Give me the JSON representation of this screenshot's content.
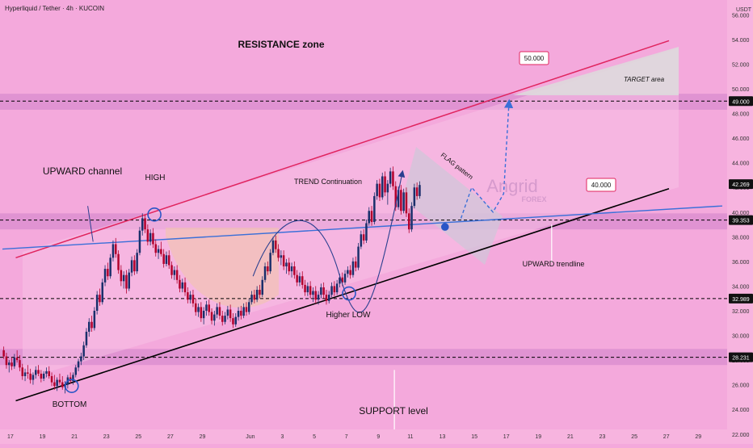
{
  "header": {
    "symbol": "Hyperliquid / Tether · 4h · KUCOIN",
    "currency": "USDT"
  },
  "watermark": {
    "line1": "Angrid",
    "line2": "FOREX"
  },
  "annotations": {
    "resistance_zone": "RESISTANCE zone",
    "upward_channel": "UPWARD channel",
    "high": "HIGH",
    "trend_continuation": "TREND Continuation",
    "flag_pattern": "FLAG pattern",
    "target_area": "TARGET area",
    "upward_trendline": "UPWARD trendline",
    "higher_low": "Higher LOW",
    "bottom": "BOTTOM",
    "support_level": "SUPPORT level",
    "label_50": "50.000",
    "label_40": "40.000"
  },
  "colors": {
    "background": "#f4a9dc",
    "zone_band": "#dc8fd0",
    "dash_line": "#000000",
    "bull": "#1a2f6b",
    "bear": "#b3002c",
    "resistance_line": "#e0245e",
    "trendline": "#3a6fd8",
    "support_line": "#000000",
    "circle": "#2a56c6"
  },
  "chart_data": {
    "type": "candlestick",
    "title": "Hyperliquid / Tether · 4h · KUCOIN",
    "currency": "USDT",
    "yrange": [
      21.2,
      57.2
    ],
    "y_ticks": [
      22,
      24,
      26,
      28,
      30,
      32,
      34,
      36,
      38,
      40,
      42,
      44,
      46,
      48,
      50,
      52,
      54,
      56
    ],
    "y_tick_labels": [
      "22.000",
      "24.000",
      "26.000",
      "28.000",
      "30.000",
      "32.000",
      "34.000",
      "36.000",
      "38.000",
      "40.000",
      "42.000",
      "44.000",
      "46.000",
      "48.000",
      "50.000",
      "52.000",
      "54.000",
      "56.000"
    ],
    "x_ticks": [
      {
        "bar": 3,
        "label": "17"
      },
      {
        "bar": 15,
        "label": "19"
      },
      {
        "bar": 27,
        "label": "21"
      },
      {
        "bar": 39,
        "label": "23"
      },
      {
        "bar": 51,
        "label": "25"
      },
      {
        "bar": 63,
        "label": "27"
      },
      {
        "bar": 75,
        "label": "29"
      },
      {
        "bar": 93,
        "label": "Jun"
      },
      {
        "bar": 105,
        "label": "3"
      },
      {
        "bar": 117,
        "label": "5"
      },
      {
        "bar": 129,
        "label": "7"
      },
      {
        "bar": 141,
        "label": "9"
      },
      {
        "bar": 153,
        "label": "11"
      },
      {
        "bar": 165,
        "label": "13"
      },
      {
        "bar": 177,
        "label": "15"
      },
      {
        "bar": 189,
        "label": "17"
      },
      {
        "bar": 201,
        "label": "19"
      },
      {
        "bar": 213,
        "label": "21"
      },
      {
        "bar": 225,
        "label": "23"
      },
      {
        "bar": 237,
        "label": "25"
      },
      {
        "bar": 249,
        "label": "27"
      },
      {
        "bar": 261,
        "label": "29"
      }
    ],
    "price_labels": [
      {
        "value": 49.0,
        "label": "49.000"
      },
      {
        "value": 42.269,
        "label": "42.269"
      },
      {
        "value": 39.353,
        "label": "39.353"
      },
      {
        "value": 32.989,
        "label": "32.989"
      },
      {
        "value": 28.231,
        "label": "28.231"
      }
    ],
    "zones": [
      {
        "from": 48.3,
        "to": 49.6
      },
      {
        "from": 38.6,
        "to": 39.9
      },
      {
        "from": 27.6,
        "to": 28.9
      }
    ],
    "dashed_levels": [
      49.0,
      39.353,
      32.989,
      28.231
    ],
    "lines": {
      "resistance": [
        {
          "bar": 5,
          "price": 36.3
        },
        {
          "bar": 250,
          "price": 53.9
        }
      ],
      "support": [
        {
          "bar": 5,
          "price": 24.7
        },
        {
          "bar": 250,
          "price": 41.9
        }
      ],
      "trendline": [
        {
          "bar": 0,
          "price": 37.0
        },
        {
          "bar": 270,
          "price": 40.5
        }
      ]
    },
    "projection": [
      {
        "bar": 172,
        "price": 39.5
      },
      {
        "bar": 176,
        "price": 42.0
      },
      {
        "bar": 180,
        "price": 41.0
      },
      {
        "bar": 184,
        "price": 40.0
      },
      {
        "bar": 188,
        "price": 41.5
      },
      {
        "bar": 190,
        "price": 48.9
      }
    ],
    "candles": [
      {
        "o": 28.8,
        "h": 29.1,
        "l": 28.1,
        "c": 28.3
      },
      {
        "o": 28.3,
        "h": 28.6,
        "l": 27.3,
        "c": 27.6
      },
      {
        "o": 27.6,
        "h": 28.0,
        "l": 27.0,
        "c": 27.8
      },
      {
        "o": 27.8,
        "h": 28.2,
        "l": 27.2,
        "c": 27.5
      },
      {
        "o": 27.5,
        "h": 28.5,
        "l": 27.3,
        "c": 28.2
      },
      {
        "o": 28.2,
        "h": 28.8,
        "l": 27.8,
        "c": 28.0
      },
      {
        "o": 28.0,
        "h": 28.4,
        "l": 27.1,
        "c": 27.4
      },
      {
        "o": 27.4,
        "h": 27.7,
        "l": 26.4,
        "c": 26.7
      },
      {
        "o": 26.7,
        "h": 27.3,
        "l": 26.3,
        "c": 27.0
      },
      {
        "o": 27.0,
        "h": 27.6,
        "l": 26.5,
        "c": 26.9
      },
      {
        "o": 26.9,
        "h": 27.3,
        "l": 26.1,
        "c": 26.4
      },
      {
        "o": 26.4,
        "h": 27.0,
        "l": 26.0,
        "c": 26.8
      },
      {
        "o": 26.8,
        "h": 27.5,
        "l": 26.5,
        "c": 27.2
      },
      {
        "o": 27.2,
        "h": 27.6,
        "l": 26.7,
        "c": 26.9
      },
      {
        "o": 26.9,
        "h": 27.2,
        "l": 26.2,
        "c": 26.5
      },
      {
        "o": 26.5,
        "h": 27.1,
        "l": 26.3,
        "c": 26.9
      },
      {
        "o": 26.9,
        "h": 27.4,
        "l": 26.6,
        "c": 27.1
      },
      {
        "o": 27.1,
        "h": 27.5,
        "l": 26.5,
        "c": 26.7
      },
      {
        "o": 26.7,
        "h": 27.0,
        "l": 25.9,
        "c": 26.2
      },
      {
        "o": 26.2,
        "h": 26.8,
        "l": 25.6,
        "c": 25.9
      },
      {
        "o": 25.9,
        "h": 26.6,
        "l": 25.5,
        "c": 26.4
      },
      {
        "o": 26.4,
        "h": 26.9,
        "l": 26.0,
        "c": 26.2
      },
      {
        "o": 26.2,
        "h": 26.7,
        "l": 25.6,
        "c": 25.8
      },
      {
        "o": 25.8,
        "h": 26.3,
        "l": 25.3,
        "c": 26.0
      },
      {
        "o": 26.0,
        "h": 26.8,
        "l": 25.7,
        "c": 26.6
      },
      {
        "o": 26.6,
        "h": 27.0,
        "l": 26.1,
        "c": 26.3
      },
      {
        "o": 26.3,
        "h": 27.0,
        "l": 26.0,
        "c": 26.8
      },
      {
        "o": 26.8,
        "h": 27.6,
        "l": 26.6,
        "c": 27.4
      },
      {
        "o": 27.4,
        "h": 28.1,
        "l": 27.1,
        "c": 27.9
      },
      {
        "o": 27.9,
        "h": 28.6,
        "l": 27.6,
        "c": 28.3
      },
      {
        "o": 28.3,
        "h": 29.5,
        "l": 28.0,
        "c": 29.2
      },
      {
        "o": 29.2,
        "h": 30.6,
        "l": 29.0,
        "c": 30.3
      },
      {
        "o": 30.3,
        "h": 31.4,
        "l": 29.9,
        "c": 31.1
      },
      {
        "o": 31.1,
        "h": 31.6,
        "l": 30.3,
        "c": 30.6
      },
      {
        "o": 30.6,
        "h": 32.3,
        "l": 30.4,
        "c": 32.0
      },
      {
        "o": 32.0,
        "h": 33.6,
        "l": 31.7,
        "c": 33.3
      },
      {
        "o": 33.3,
        "h": 33.8,
        "l": 32.4,
        "c": 32.7
      },
      {
        "o": 32.7,
        "h": 34.6,
        "l": 32.5,
        "c": 34.3
      },
      {
        "o": 34.3,
        "h": 35.7,
        "l": 34.0,
        "c": 35.4
      },
      {
        "o": 35.4,
        "h": 35.9,
        "l": 34.5,
        "c": 34.8
      },
      {
        "o": 34.8,
        "h": 36.6,
        "l": 34.6,
        "c": 36.3
      },
      {
        "o": 36.3,
        "h": 37.7,
        "l": 36.0,
        "c": 37.4
      },
      {
        "o": 37.4,
        "h": 37.9,
        "l": 36.3,
        "c": 36.6
      },
      {
        "o": 36.6,
        "h": 36.9,
        "l": 35.0,
        "c": 35.3
      },
      {
        "o": 35.3,
        "h": 35.7,
        "l": 34.0,
        "c": 34.4
      },
      {
        "o": 34.4,
        "h": 35.2,
        "l": 33.8,
        "c": 34.9
      },
      {
        "o": 34.9,
        "h": 35.3,
        "l": 33.4,
        "c": 33.8
      },
      {
        "o": 33.8,
        "h": 35.4,
        "l": 33.6,
        "c": 35.1
      },
      {
        "o": 35.1,
        "h": 36.4,
        "l": 34.8,
        "c": 36.1
      },
      {
        "o": 36.1,
        "h": 36.5,
        "l": 34.9,
        "c": 35.2
      },
      {
        "o": 35.2,
        "h": 37.0,
        "l": 35.0,
        "c": 36.7
      },
      {
        "o": 36.7,
        "h": 38.8,
        "l": 36.5,
        "c": 38.5
      },
      {
        "o": 38.5,
        "h": 39.9,
        "l": 38.1,
        "c": 39.5
      },
      {
        "o": 39.5,
        "h": 39.8,
        "l": 38.3,
        "c": 38.6
      },
      {
        "o": 38.6,
        "h": 39.0,
        "l": 37.3,
        "c": 37.6
      },
      {
        "o": 37.6,
        "h": 38.6,
        "l": 37.3,
        "c": 38.3
      },
      {
        "o": 38.3,
        "h": 38.7,
        "l": 37.1,
        "c": 37.4
      },
      {
        "o": 37.4,
        "h": 37.8,
        "l": 36.4,
        "c": 36.7
      },
      {
        "o": 36.7,
        "h": 37.3,
        "l": 36.2,
        "c": 37.0
      },
      {
        "o": 37.0,
        "h": 37.6,
        "l": 36.4,
        "c": 36.6
      },
      {
        "o": 36.6,
        "h": 37.0,
        "l": 35.5,
        "c": 35.8
      },
      {
        "o": 35.8,
        "h": 36.8,
        "l": 35.6,
        "c": 36.5
      },
      {
        "o": 36.5,
        "h": 36.9,
        "l": 35.4,
        "c": 35.7
      },
      {
        "o": 35.7,
        "h": 36.0,
        "l": 34.6,
        "c": 34.9
      },
      {
        "o": 34.9,
        "h": 35.6,
        "l": 34.5,
        "c": 35.3
      },
      {
        "o": 35.3,
        "h": 35.7,
        "l": 34.2,
        "c": 34.5
      },
      {
        "o": 34.5,
        "h": 34.9,
        "l": 33.5,
        "c": 33.8
      },
      {
        "o": 33.8,
        "h": 34.6,
        "l": 33.5,
        "c": 34.3
      },
      {
        "o": 34.3,
        "h": 34.7,
        "l": 33.2,
        "c": 33.5
      },
      {
        "o": 33.5,
        "h": 33.9,
        "l": 32.6,
        "c": 32.9
      },
      {
        "o": 32.9,
        "h": 33.6,
        "l": 32.6,
        "c": 33.3
      },
      {
        "o": 33.3,
        "h": 33.7,
        "l": 32.3,
        "c": 32.6
      },
      {
        "o": 32.6,
        "h": 33.0,
        "l": 31.6,
        "c": 31.9
      },
      {
        "o": 31.9,
        "h": 32.6,
        "l": 31.5,
        "c": 32.3
      },
      {
        "o": 32.3,
        "h": 32.7,
        "l": 31.1,
        "c": 31.4
      },
      {
        "o": 31.4,
        "h": 32.3,
        "l": 30.9,
        "c": 32.0
      },
      {
        "o": 32.0,
        "h": 32.8,
        "l": 31.6,
        "c": 32.5
      },
      {
        "o": 32.5,
        "h": 32.9,
        "l": 31.6,
        "c": 31.9
      },
      {
        "o": 31.9,
        "h": 32.2,
        "l": 30.9,
        "c": 31.2
      },
      {
        "o": 31.2,
        "h": 32.0,
        "l": 30.8,
        "c": 31.7
      },
      {
        "o": 31.7,
        "h": 32.6,
        "l": 31.4,
        "c": 32.3
      },
      {
        "o": 32.3,
        "h": 32.7,
        "l": 31.3,
        "c": 31.6
      },
      {
        "o": 31.6,
        "h": 32.0,
        "l": 30.8,
        "c": 31.1
      },
      {
        "o": 31.1,
        "h": 31.9,
        "l": 30.9,
        "c": 31.6
      },
      {
        "o": 31.6,
        "h": 32.4,
        "l": 31.3,
        "c": 32.1
      },
      {
        "o": 32.1,
        "h": 32.5,
        "l": 31.1,
        "c": 31.4
      },
      {
        "o": 31.4,
        "h": 31.8,
        "l": 30.6,
        "c": 30.9
      },
      {
        "o": 30.9,
        "h": 31.8,
        "l": 30.7,
        "c": 31.5
      },
      {
        "o": 31.5,
        "h": 32.3,
        "l": 31.2,
        "c": 32.0
      },
      {
        "o": 32.0,
        "h": 32.4,
        "l": 31.3,
        "c": 31.6
      },
      {
        "o": 31.6,
        "h": 32.6,
        "l": 31.4,
        "c": 32.3
      },
      {
        "o": 32.3,
        "h": 32.7,
        "l": 31.6,
        "c": 31.9
      },
      {
        "o": 31.9,
        "h": 33.0,
        "l": 31.7,
        "c": 32.7
      },
      {
        "o": 32.7,
        "h": 33.6,
        "l": 32.5,
        "c": 33.3
      },
      {
        "o": 33.3,
        "h": 33.7,
        "l": 32.6,
        "c": 32.9
      },
      {
        "o": 32.9,
        "h": 34.0,
        "l": 32.7,
        "c": 33.7
      },
      {
        "o": 33.7,
        "h": 34.1,
        "l": 33.0,
        "c": 33.3
      },
      {
        "o": 33.3,
        "h": 34.8,
        "l": 33.1,
        "c": 34.5
      },
      {
        "o": 34.5,
        "h": 35.9,
        "l": 34.3,
        "c": 35.6
      },
      {
        "o": 35.6,
        "h": 36.0,
        "l": 34.9,
        "c": 35.2
      },
      {
        "o": 35.2,
        "h": 37.0,
        "l": 35.0,
        "c": 36.7
      },
      {
        "o": 36.7,
        "h": 38.0,
        "l": 36.5,
        "c": 37.7
      },
      {
        "o": 37.7,
        "h": 38.1,
        "l": 36.7,
        "c": 37.0
      },
      {
        "o": 37.0,
        "h": 37.4,
        "l": 36.0,
        "c": 36.3
      },
      {
        "o": 36.3,
        "h": 36.9,
        "l": 35.7,
        "c": 36.5
      },
      {
        "o": 36.5,
        "h": 36.9,
        "l": 35.3,
        "c": 35.6
      },
      {
        "o": 35.6,
        "h": 36.2,
        "l": 35.0,
        "c": 35.9
      },
      {
        "o": 35.9,
        "h": 36.3,
        "l": 34.9,
        "c": 35.2
      },
      {
        "o": 35.2,
        "h": 35.9,
        "l": 34.7,
        "c": 35.6
      },
      {
        "o": 35.6,
        "h": 36.0,
        "l": 34.6,
        "c": 34.9
      },
      {
        "o": 34.9,
        "h": 35.3,
        "l": 34.0,
        "c": 34.3
      },
      {
        "o": 34.3,
        "h": 35.1,
        "l": 34.0,
        "c": 34.8
      },
      {
        "o": 34.8,
        "h": 35.2,
        "l": 33.8,
        "c": 34.1
      },
      {
        "o": 34.1,
        "h": 34.5,
        "l": 33.2,
        "c": 33.5
      },
      {
        "o": 33.5,
        "h": 34.3,
        "l": 33.2,
        "c": 34.0
      },
      {
        "o": 34.0,
        "h": 34.4,
        "l": 33.0,
        "c": 33.3
      },
      {
        "o": 33.3,
        "h": 33.9,
        "l": 32.7,
        "c": 33.6
      },
      {
        "o": 33.6,
        "h": 34.0,
        "l": 32.6,
        "c": 32.9
      },
      {
        "o": 32.9,
        "h": 33.6,
        "l": 32.5,
        "c": 33.3
      },
      {
        "o": 33.3,
        "h": 34.2,
        "l": 33.0,
        "c": 33.9
      },
      {
        "o": 33.9,
        "h": 34.3,
        "l": 33.0,
        "c": 33.3
      },
      {
        "o": 33.3,
        "h": 33.7,
        "l": 32.5,
        "c": 32.8
      },
      {
        "o": 32.8,
        "h": 33.6,
        "l": 32.6,
        "c": 33.3
      },
      {
        "o": 33.3,
        "h": 34.3,
        "l": 33.1,
        "c": 34.0
      },
      {
        "o": 34.0,
        "h": 34.4,
        "l": 33.2,
        "c": 33.5
      },
      {
        "o": 33.5,
        "h": 34.5,
        "l": 33.3,
        "c": 34.2
      },
      {
        "o": 34.2,
        "h": 35.0,
        "l": 33.9,
        "c": 34.7
      },
      {
        "o": 34.7,
        "h": 35.1,
        "l": 34.0,
        "c": 34.3
      },
      {
        "o": 34.3,
        "h": 35.3,
        "l": 34.1,
        "c": 35.0
      },
      {
        "o": 35.0,
        "h": 35.6,
        "l": 34.7,
        "c": 35.3
      },
      {
        "o": 35.3,
        "h": 35.7,
        "l": 34.6,
        "c": 34.9
      },
      {
        "o": 34.9,
        "h": 36.3,
        "l": 34.7,
        "c": 36.0
      },
      {
        "o": 36.0,
        "h": 36.4,
        "l": 35.2,
        "c": 35.5
      },
      {
        "o": 35.5,
        "h": 37.5,
        "l": 35.3,
        "c": 37.2
      },
      {
        "o": 37.2,
        "h": 38.5,
        "l": 37.0,
        "c": 38.2
      },
      {
        "o": 38.2,
        "h": 38.6,
        "l": 37.4,
        "c": 37.7
      },
      {
        "o": 37.7,
        "h": 39.4,
        "l": 37.5,
        "c": 39.1
      },
      {
        "o": 39.1,
        "h": 40.4,
        "l": 38.9,
        "c": 40.1
      },
      {
        "o": 40.1,
        "h": 40.5,
        "l": 38.9,
        "c": 39.2
      },
      {
        "o": 39.2,
        "h": 41.6,
        "l": 39.0,
        "c": 41.3
      },
      {
        "o": 41.3,
        "h": 42.6,
        "l": 41.0,
        "c": 42.3
      },
      {
        "o": 42.3,
        "h": 42.7,
        "l": 40.9,
        "c": 41.2
      },
      {
        "o": 41.2,
        "h": 43.2,
        "l": 41.0,
        "c": 42.9
      },
      {
        "o": 42.9,
        "h": 43.3,
        "l": 41.3,
        "c": 41.6
      },
      {
        "o": 41.6,
        "h": 42.6,
        "l": 40.6,
        "c": 42.3
      },
      {
        "o": 42.3,
        "h": 43.6,
        "l": 42.0,
        "c": 43.3
      },
      {
        "o": 43.3,
        "h": 43.7,
        "l": 41.8,
        "c": 42.1
      },
      {
        "o": 42.1,
        "h": 42.5,
        "l": 40.1,
        "c": 40.4
      },
      {
        "o": 40.4,
        "h": 42.1,
        "l": 40.2,
        "c": 41.8
      },
      {
        "o": 41.8,
        "h": 42.2,
        "l": 39.8,
        "c": 40.1
      },
      {
        "o": 40.1,
        "h": 41.9,
        "l": 39.9,
        "c": 41.6
      },
      {
        "o": 41.6,
        "h": 42.0,
        "l": 39.6,
        "c": 39.9
      },
      {
        "o": 39.9,
        "h": 40.3,
        "l": 38.3,
        "c": 38.6
      },
      {
        "o": 38.6,
        "h": 40.8,
        "l": 38.4,
        "c": 40.5
      },
      {
        "o": 40.5,
        "h": 42.3,
        "l": 40.3,
        "c": 42.0
      },
      {
        "o": 42.0,
        "h": 42.4,
        "l": 41.0,
        "c": 41.3
      },
      {
        "o": 41.3,
        "h": 42.5,
        "l": 41.1,
        "c": 42.2
      }
    ]
  }
}
